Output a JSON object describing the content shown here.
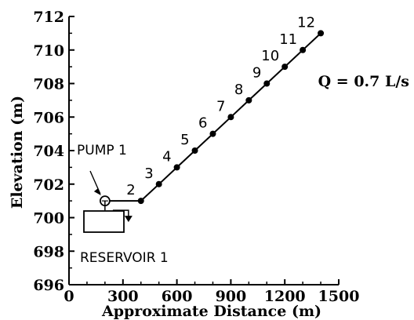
{
  "chart_data": {
    "type": "line",
    "xlabel": "Approximate Distance (m)",
    "ylabel": "Elevation (m)",
    "xlim": [
      0,
      1500
    ],
    "ylim": [
      696,
      712
    ],
    "x_ticks": [
      0,
      300,
      600,
      900,
      1200,
      1500
    ],
    "y_ticks": [
      696,
      698,
      700,
      702,
      704,
      706,
      708,
      710,
      712
    ],
    "grid": false,
    "series": [
      {
        "points": [
          {
            "x": 200,
            "y": 701
          },
          {
            "x": 400,
            "y": 701
          },
          {
            "x": 500,
            "y": 702
          },
          {
            "x": 600,
            "y": 703
          },
          {
            "x": 700,
            "y": 704
          },
          {
            "x": 800,
            "y": 705
          },
          {
            "x": 900,
            "y": 706
          },
          {
            "x": 1000,
            "y": 707
          },
          {
            "x": 1100,
            "y": 708
          },
          {
            "x": 1200,
            "y": 709
          },
          {
            "x": 1300,
            "y": 710
          },
          {
            "x": 1400,
            "y": 711
          }
        ]
      }
    ],
    "node_labels": [
      {
        "label": "2",
        "x": 400,
        "y": 701
      },
      {
        "label": "3",
        "x": 500,
        "y": 702
      },
      {
        "label": "4",
        "x": 600,
        "y": 703
      },
      {
        "label": "5",
        "x": 700,
        "y": 704
      },
      {
        "label": "6",
        "x": 800,
        "y": 705
      },
      {
        "label": "7",
        "x": 900,
        "y": 706
      },
      {
        "label": "8",
        "x": 1000,
        "y": 707
      },
      {
        "label": "9",
        "x": 1100,
        "y": 708
      },
      {
        "label": "10",
        "x": 1200,
        "y": 709
      },
      {
        "label": "11",
        "x": 1300,
        "y": 710
      },
      {
        "label": "12",
        "x": 1400,
        "y": 711
      }
    ],
    "annotations": {
      "pump_label": "PUMP  1",
      "reservoir_label": "RESERVOIR  1",
      "flow_label": "Q  =  0.7  L/s"
    }
  }
}
